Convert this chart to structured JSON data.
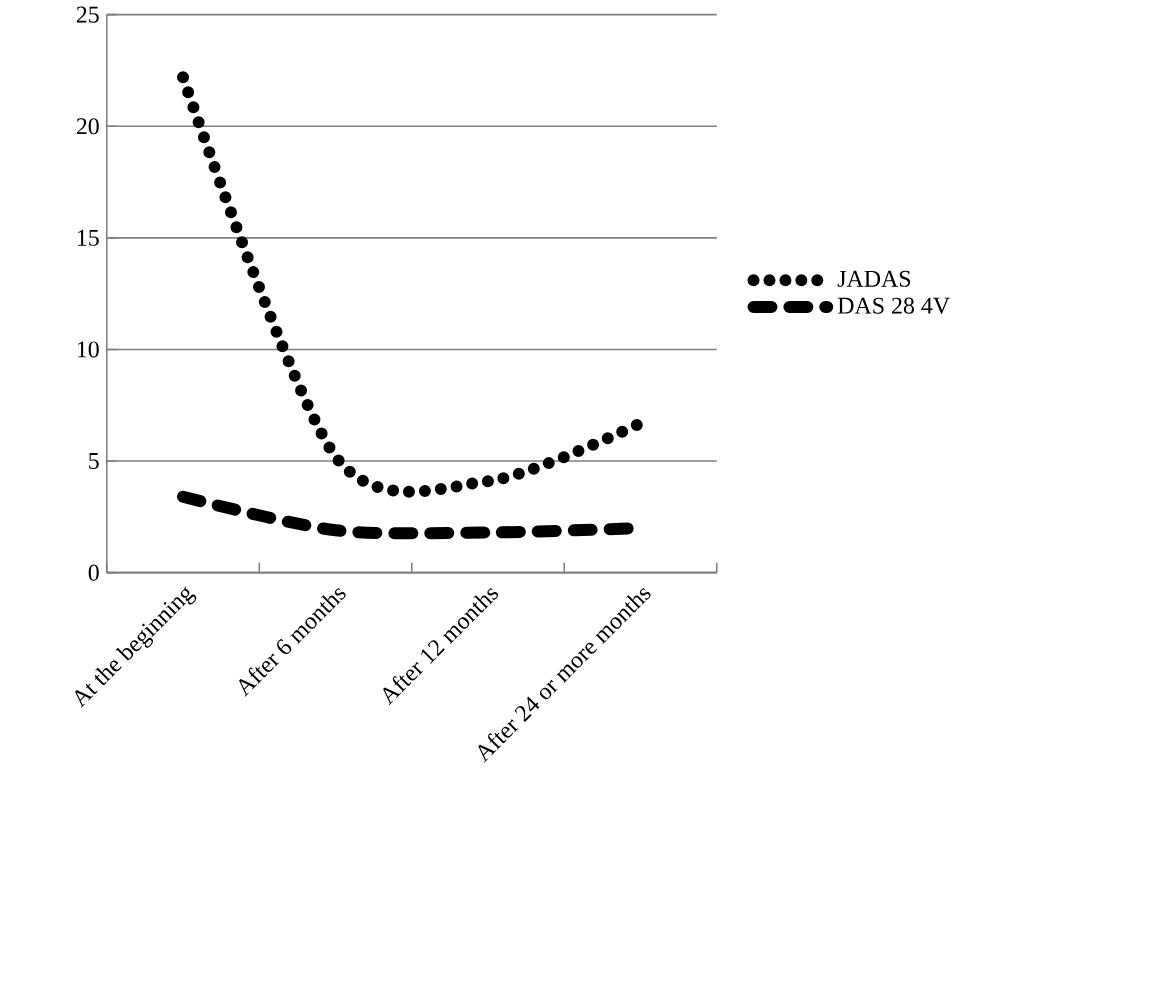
{
  "chart_data": {
    "type": "line",
    "categories": [
      "At the beginning",
      "After 6 months",
      "After 12 months",
      "After 24 or more months"
    ],
    "series": [
      {
        "name": "JADAS",
        "color": "#000000",
        "line_style": "dotted",
        "values": [
          22.2,
          5.2,
          4.1,
          6.7
        ]
      },
      {
        "name": "DAS 28 4V",
        "color": "#000000",
        "line_style": "dashed",
        "values": [
          3.4,
          1.9,
          1.8,
          2.0
        ]
      }
    ],
    "ylim": [
      0,
      25
    ],
    "yticks": [
      0,
      5,
      10,
      15,
      20,
      25
    ],
    "grid": "y",
    "legend": "right",
    "marker": "none"
  }
}
